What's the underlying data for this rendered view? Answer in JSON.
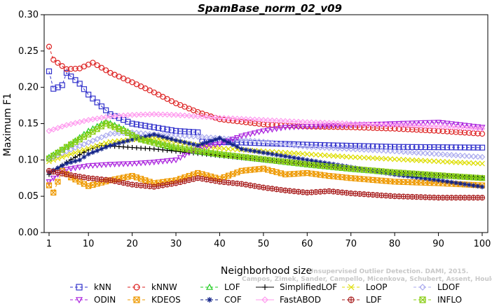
{
  "chart_data": {
    "type": "line",
    "title": "SpamBase_norm_02_v09",
    "xlabel": "Neighborhood size",
    "ylabel": "Maximum F1",
    "xlim": [
      0,
      100
    ],
    "ylim": [
      0,
      0.3
    ],
    "x_ticks": [
      1,
      10,
      20,
      30,
      40,
      50,
      60,
      70,
      80,
      90,
      100
    ],
    "y_ticks": [
      0.0,
      0.05,
      0.1,
      0.15,
      0.2,
      0.25,
      0.3
    ],
    "y_tick_labels": [
      "0.00",
      "0.05",
      "0.10",
      "0.15",
      "0.20",
      "0.25",
      "0.30"
    ],
    "legend_position": "bottom",
    "watermark": "Unsupervised Outlier Detection. DAMI, 2015.\nCampos, Zimek, Sander, Campello, Micenkova, Schubert, Assent, Houle",
    "series": [
      {
        "name": "kNN",
        "color": "#3333cc",
        "marker": "square",
        "dash": "4,3",
        "x_max": 100,
        "points": [
          [
            1,
            0.222
          ],
          [
            2,
            0.198
          ],
          [
            3,
            0.2
          ],
          [
            4,
            0.203
          ],
          [
            5,
            0.22
          ],
          [
            6,
            0.215
          ],
          [
            8,
            0.205
          ],
          [
            10,
            0.19
          ],
          [
            15,
            0.163
          ],
          [
            20,
            0.15
          ],
          [
            30,
            0.14
          ],
          [
            35,
            0.138
          ],
          [
            36,
            0.125
          ],
          [
            45,
            0.124
          ],
          [
            60,
            0.121
          ],
          [
            80,
            0.118
          ],
          [
            100,
            0.117
          ]
        ]
      },
      {
        "name": "kNNW",
        "color": "#dd2222",
        "marker": "circle",
        "dash": "4,3",
        "x_max": 100,
        "points": [
          [
            1,
            0.256
          ],
          [
            2,
            0.238
          ],
          [
            5,
            0.225
          ],
          [
            8,
            0.226
          ],
          [
            11,
            0.234
          ],
          [
            15,
            0.22
          ],
          [
            20,
            0.207
          ],
          [
            25,
            0.193
          ],
          [
            30,
            0.178
          ],
          [
            35,
            0.166
          ],
          [
            40,
            0.156
          ],
          [
            50,
            0.149
          ],
          [
            60,
            0.146
          ],
          [
            70,
            0.145
          ],
          [
            80,
            0.143
          ],
          [
            90,
            0.14
          ],
          [
            100,
            0.136
          ]
        ]
      },
      {
        "name": "LOF",
        "color": "#22cc22",
        "marker": "triangle-up",
        "dash": "4,3",
        "x_max": 100,
        "points": [
          [
            1,
            0.104
          ],
          [
            5,
            0.118
          ],
          [
            10,
            0.14
          ],
          [
            14,
            0.153
          ],
          [
            18,
            0.143
          ],
          [
            22,
            0.128
          ],
          [
            30,
            0.115
          ],
          [
            40,
            0.107
          ],
          [
            50,
            0.1
          ],
          [
            60,
            0.093
          ],
          [
            70,
            0.087
          ],
          [
            80,
            0.082
          ],
          [
            90,
            0.078
          ],
          [
            100,
            0.075
          ]
        ]
      },
      {
        "name": "SimplifiedLOF",
        "color": "#000000",
        "marker": "plus",
        "dash": "",
        "x_max": 100,
        "points": [
          [
            1,
            0.08
          ],
          [
            5,
            0.097
          ],
          [
            10,
            0.114
          ],
          [
            13,
            0.12
          ],
          [
            18,
            0.118
          ],
          [
            25,
            0.115
          ],
          [
            30,
            0.112
          ],
          [
            40,
            0.106
          ],
          [
            50,
            0.1
          ],
          [
            60,
            0.094
          ],
          [
            70,
            0.088
          ],
          [
            80,
            0.083
          ],
          [
            90,
            0.079
          ],
          [
            100,
            0.076
          ]
        ]
      },
      {
        "name": "LoOP",
        "color": "#dddd00",
        "marker": "x",
        "dash": "4,3",
        "x_max": 100,
        "points": [
          [
            1,
            0.098
          ],
          [
            5,
            0.106
          ],
          [
            10,
            0.116
          ],
          [
            15,
            0.125
          ],
          [
            20,
            0.128
          ],
          [
            25,
            0.13
          ],
          [
            30,
            0.125
          ],
          [
            40,
            0.116
          ],
          [
            50,
            0.112
          ],
          [
            60,
            0.108
          ],
          [
            70,
            0.104
          ],
          [
            80,
            0.101
          ],
          [
            90,
            0.098
          ],
          [
            100,
            0.095
          ]
        ]
      },
      {
        "name": "LDOF",
        "color": "#aaaaee",
        "marker": "diamond",
        "dash": "4,3",
        "x_max": 100,
        "points": [
          [
            1,
            0.101
          ],
          [
            5,
            0.112
          ],
          [
            10,
            0.124
          ],
          [
            15,
            0.136
          ],
          [
            20,
            0.138
          ],
          [
            25,
            0.135
          ],
          [
            30,
            0.134
          ],
          [
            40,
            0.13
          ],
          [
            50,
            0.125
          ],
          [
            60,
            0.118
          ],
          [
            70,
            0.115
          ],
          [
            80,
            0.112
          ],
          [
            90,
            0.108
          ],
          [
            100,
            0.104
          ]
        ]
      },
      {
        "name": "ODIN",
        "color": "#aa22dd",
        "marker": "triangle-down",
        "dash": "4,3",
        "x_max": 100,
        "points": [
          [
            1,
            0.07
          ],
          [
            3,
            0.08
          ],
          [
            5,
            0.087
          ],
          [
            10,
            0.092
          ],
          [
            15,
            0.094
          ],
          [
            20,
            0.095
          ],
          [
            25,
            0.097
          ],
          [
            30,
            0.1
          ],
          [
            33,
            0.11
          ],
          [
            36,
            0.118
          ],
          [
            40,
            0.122
          ],
          [
            45,
            0.133
          ],
          [
            50,
            0.14
          ],
          [
            55,
            0.145
          ],
          [
            60,
            0.146
          ],
          [
            70,
            0.148
          ],
          [
            80,
            0.15
          ],
          [
            90,
            0.152
          ],
          [
            100,
            0.145
          ]
        ]
      },
      {
        "name": "KDEOS",
        "color": "#ee9900",
        "marker": "square-x",
        "dash": "4,3",
        "x_max": 100,
        "points": [
          [
            1,
            0.065
          ],
          [
            2,
            0.055
          ],
          [
            4,
            0.085
          ],
          [
            6,
            0.076
          ],
          [
            8,
            0.07
          ],
          [
            10,
            0.064
          ],
          [
            15,
            0.072
          ],
          [
            20,
            0.078
          ],
          [
            25,
            0.068
          ],
          [
            30,
            0.072
          ],
          [
            35,
            0.082
          ],
          [
            40,
            0.074
          ],
          [
            45,
            0.085
          ],
          [
            50,
            0.088
          ],
          [
            55,
            0.08
          ],
          [
            60,
            0.082
          ],
          [
            65,
            0.078
          ],
          [
            70,
            0.075
          ],
          [
            80,
            0.07
          ],
          [
            90,
            0.068
          ],
          [
            100,
            0.065
          ]
        ]
      },
      {
        "name": "COF",
        "color": "#112288",
        "marker": "star",
        "dash": "4,3",
        "x_max": 100,
        "points": [
          [
            1,
            0.083
          ],
          [
            5,
            0.095
          ],
          [
            8,
            0.1
          ],
          [
            10,
            0.108
          ],
          [
            15,
            0.12
          ],
          [
            20,
            0.128
          ],
          [
            25,
            0.135
          ],
          [
            30,
            0.127
          ],
          [
            35,
            0.12
          ],
          [
            40,
            0.13
          ],
          [
            45,
            0.115
          ],
          [
            50,
            0.11
          ],
          [
            60,
            0.1
          ],
          [
            70,
            0.09
          ],
          [
            80,
            0.08
          ],
          [
            90,
            0.072
          ],
          [
            100,
            0.063
          ]
        ]
      },
      {
        "name": "FastABOD",
        "color": "#ff99ee",
        "marker": "diamond",
        "dash": "",
        "x_max": 100,
        "points": [
          [
            1,
            0.14
          ],
          [
            5,
            0.148
          ],
          [
            10,
            0.155
          ],
          [
            15,
            0.16
          ],
          [
            20,
            0.162
          ],
          [
            25,
            0.163
          ],
          [
            30,
            0.162
          ],
          [
            35,
            0.16
          ],
          [
            40,
            0.158
          ],
          [
            50,
            0.155
          ],
          [
            60,
            0.152
          ],
          [
            70,
            0.15
          ],
          [
            80,
            0.148
          ],
          [
            90,
            0.146
          ],
          [
            100,
            0.143
          ]
        ]
      },
      {
        "name": "LDF",
        "color": "#aa2222",
        "marker": "circle-plus",
        "dash": "4,3",
        "x_max": 100,
        "points": [
          [
            1,
            0.085
          ],
          [
            5,
            0.08
          ],
          [
            10,
            0.075
          ],
          [
            15,
            0.072
          ],
          [
            20,
            0.066
          ],
          [
            25,
            0.063
          ],
          [
            30,
            0.068
          ],
          [
            35,
            0.075
          ],
          [
            40,
            0.07
          ],
          [
            45,
            0.067
          ],
          [
            50,
            0.062
          ],
          [
            55,
            0.058
          ],
          [
            60,
            0.055
          ],
          [
            65,
            0.057
          ],
          [
            70,
            0.054
          ],
          [
            80,
            0.05
          ],
          [
            90,
            0.048
          ],
          [
            100,
            0.048
          ]
        ]
      },
      {
        "name": "INFLO",
        "color": "#88cc11",
        "marker": "square-x",
        "dash": "4,3",
        "x_max": 100,
        "points": [
          [
            1,
            0.102
          ],
          [
            5,
            0.118
          ],
          [
            10,
            0.135
          ],
          [
            14,
            0.15
          ],
          [
            18,
            0.14
          ],
          [
            22,
            0.128
          ],
          [
            30,
            0.117
          ],
          [
            40,
            0.108
          ],
          [
            50,
            0.101
          ],
          [
            60,
            0.094
          ],
          [
            70,
            0.088
          ],
          [
            80,
            0.083
          ],
          [
            90,
            0.079
          ],
          [
            100,
            0.075
          ]
        ]
      }
    ]
  }
}
